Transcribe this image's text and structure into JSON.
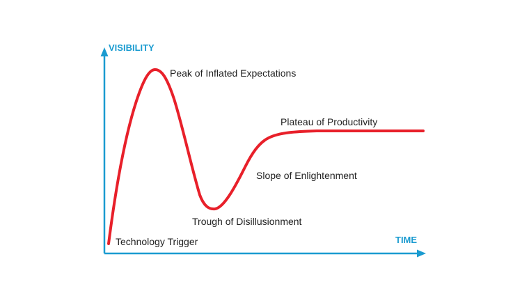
{
  "colors": {
    "axis": "#1a9bd0",
    "curve": "#e8202a",
    "label": "#222222"
  },
  "axes": {
    "y_label": "VISIBILITY",
    "x_label": "TIME"
  },
  "phases": {
    "technology_trigger": "Technology Trigger",
    "peak": "Peak of Inflated Expectations",
    "trough": "Trough of Disillusionment",
    "slope": "Slope of Enlightenment",
    "plateau": "Plateau of Productivity"
  }
}
